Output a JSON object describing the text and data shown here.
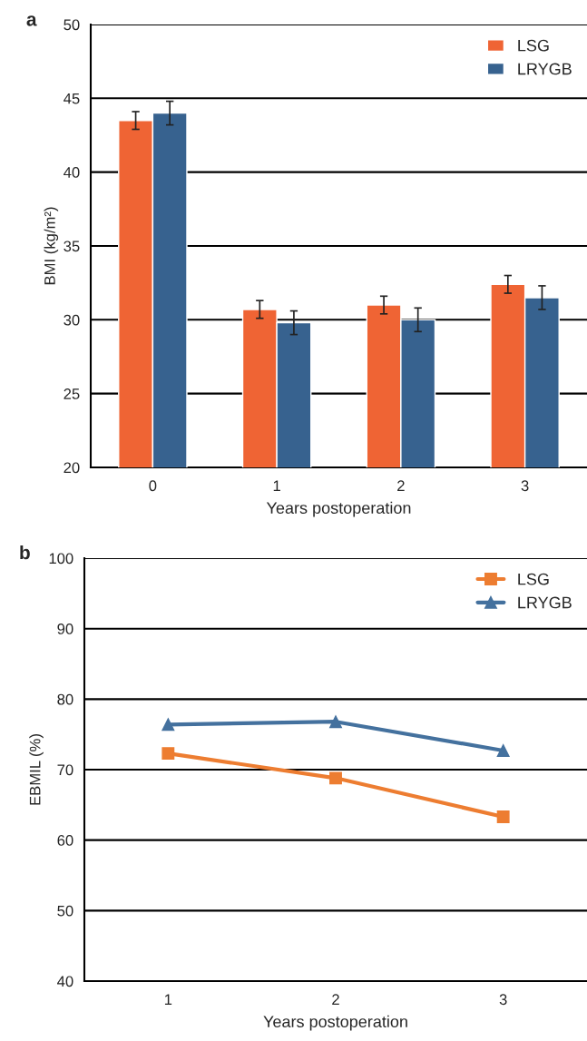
{
  "chart_data": [
    {
      "type": "bar",
      "title": "a",
      "xlabel": "Years postoperation",
      "ylabel": "BMI (kg/m²)",
      "categories": [
        "0",
        "1",
        "2",
        "3"
      ],
      "series": [
        {
          "name": "LSG",
          "color": "#ef6434",
          "values": [
            43.5,
            30.7,
            31.0,
            32.4
          ],
          "errors": [
            0.6,
            0.6,
            0.6,
            0.6
          ]
        },
        {
          "name": "LRYGB",
          "color": "#37628f",
          "values": [
            44.0,
            29.8,
            30.0,
            31.5
          ],
          "errors": [
            0.8,
            0.8,
            0.8,
            0.8
          ]
        }
      ],
      "ylim": [
        20,
        50
      ],
      "yticks": [
        20,
        25,
        30,
        35,
        40,
        45,
        50
      ],
      "grid": "y",
      "legend": "top right"
    },
    {
      "type": "line",
      "title": "b",
      "xlabel": "Years postoperation",
      "ylabel": "EBMIL (%)",
      "categories": [
        "1",
        "2",
        "3"
      ],
      "series": [
        {
          "name": "LSG",
          "color": "#ed7d31",
          "values": [
            72.3,
            68.8,
            63.3
          ],
          "marker": "square"
        },
        {
          "name": "LRYGB",
          "color": "#44719e",
          "values": [
            76.4,
            76.8,
            72.7
          ],
          "marker": "triangle"
        }
      ],
      "ylim": [
        40,
        100
      ],
      "yticks": [
        40,
        50,
        60,
        70,
        80,
        90,
        100
      ],
      "grid": "y",
      "legend": "top right"
    }
  ]
}
